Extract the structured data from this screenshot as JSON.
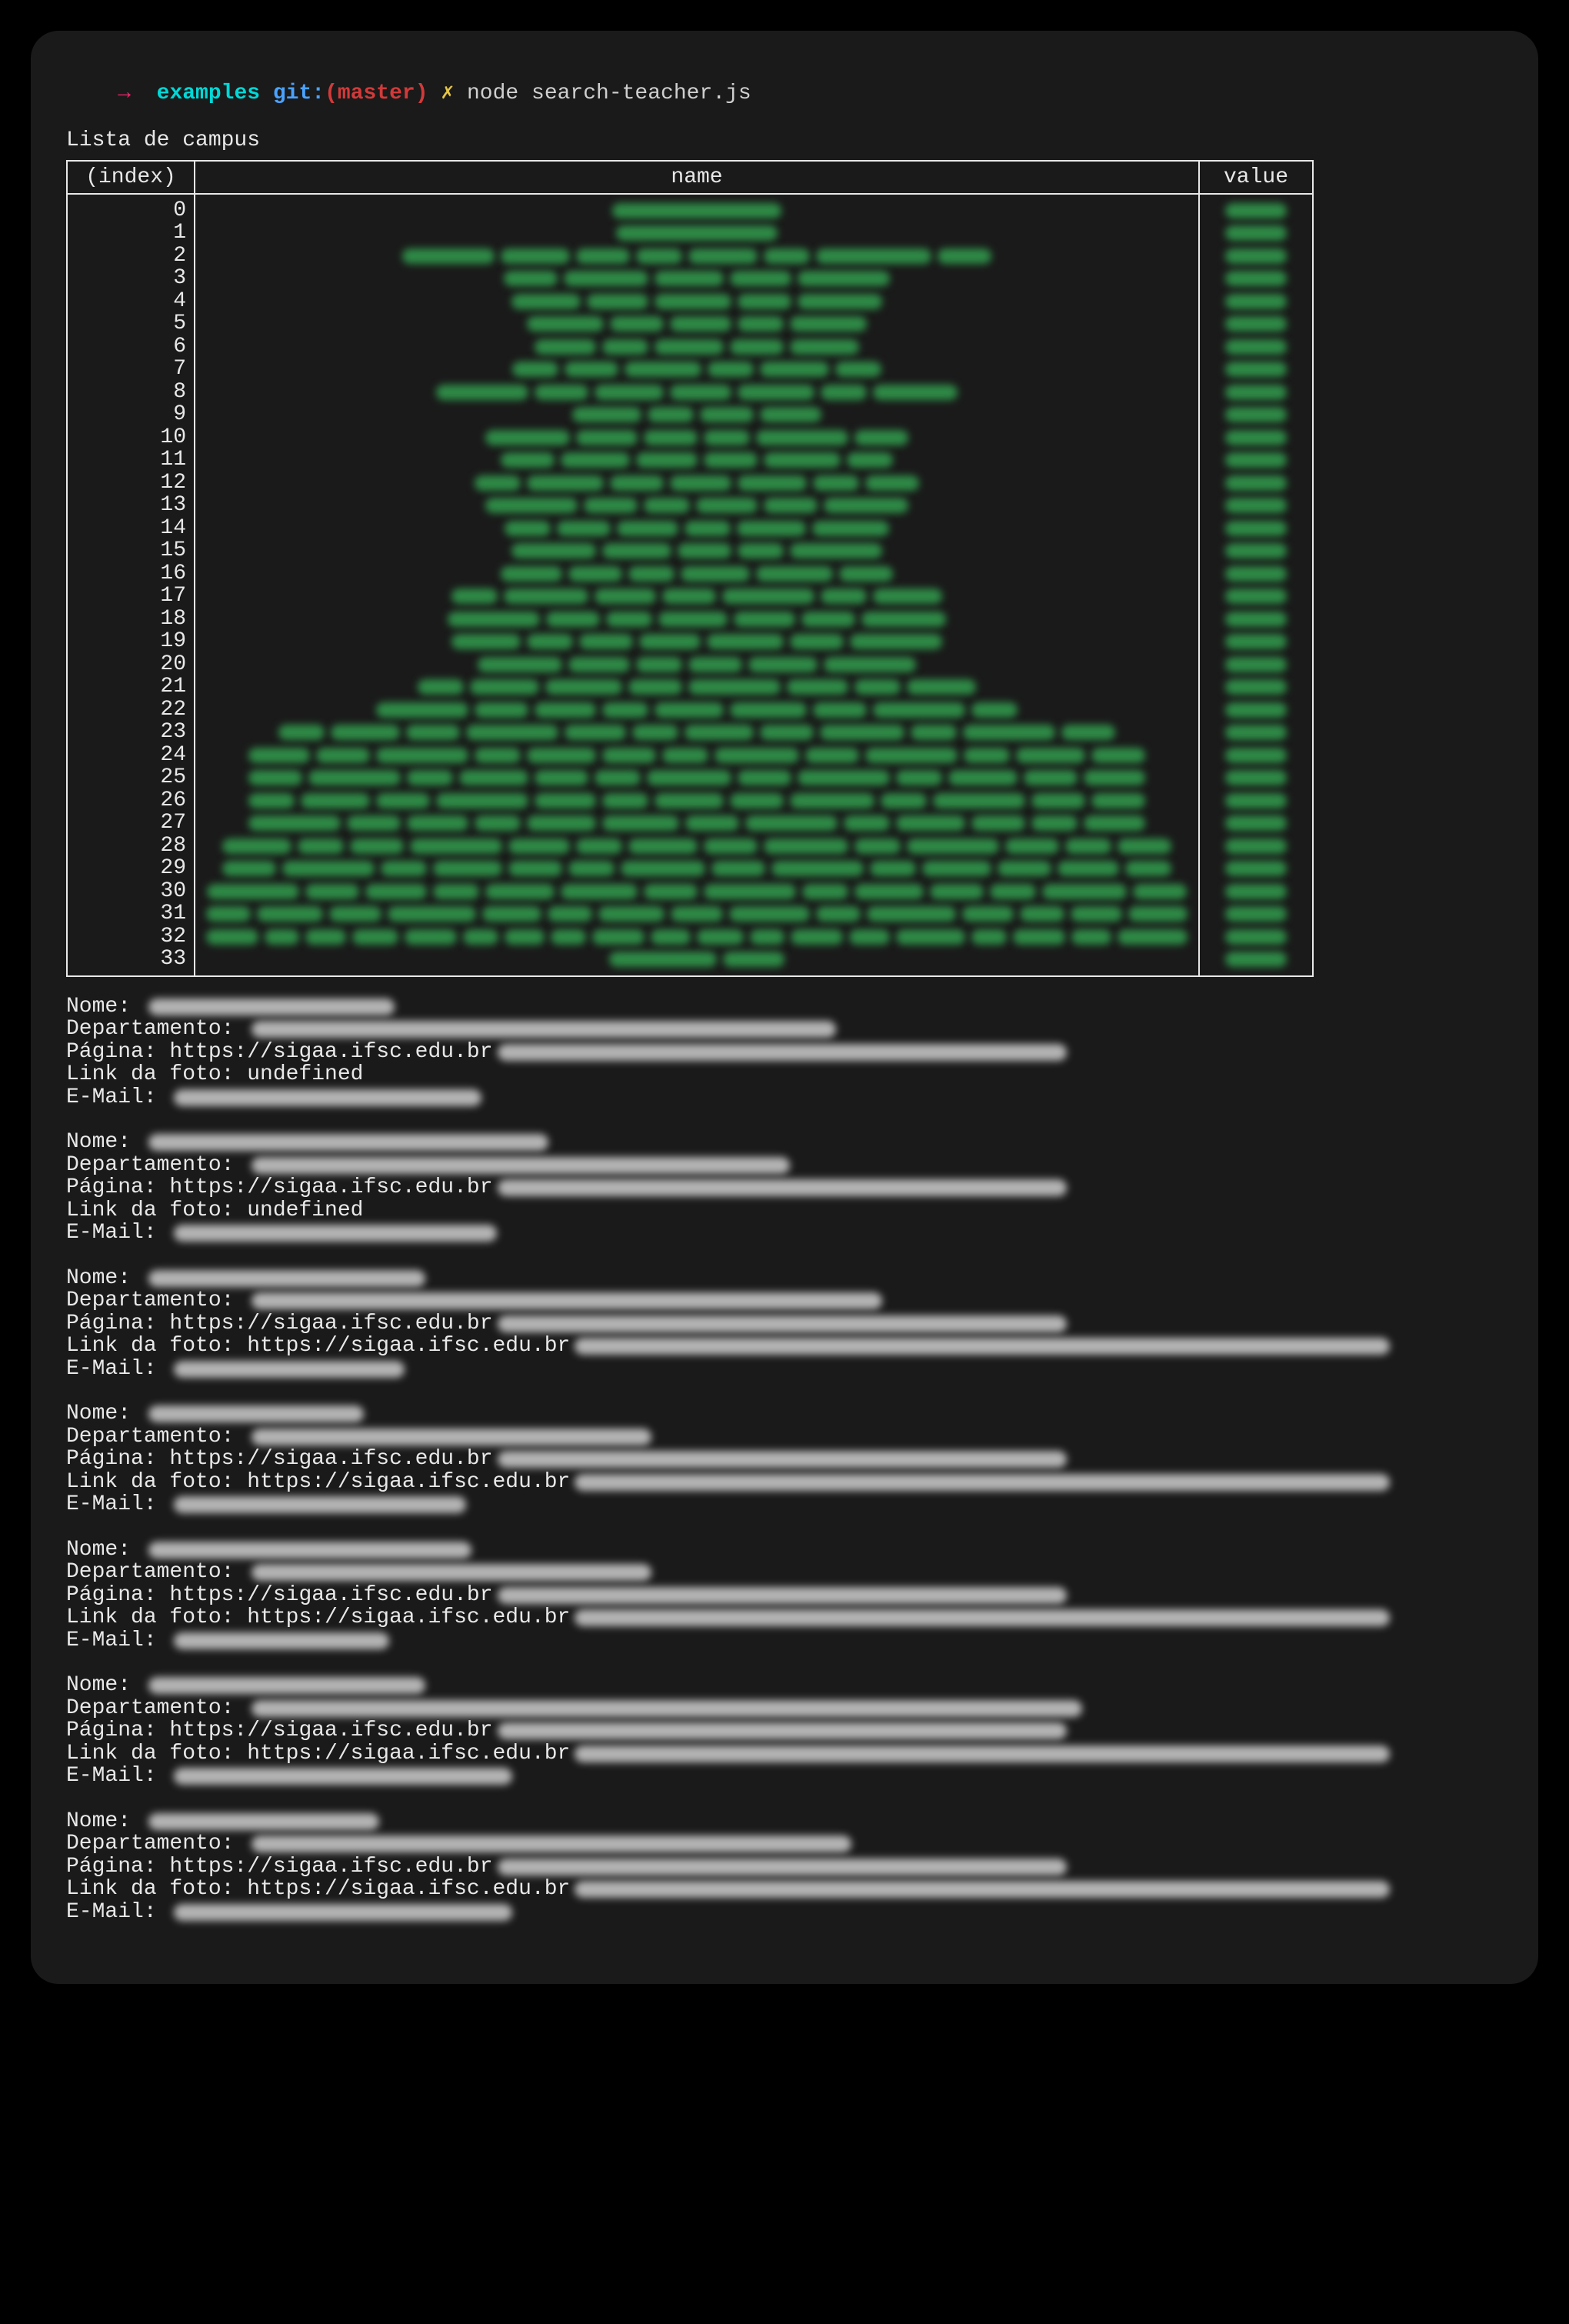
{
  "prompt": {
    "arrow": "→",
    "cwd": "examples",
    "git_label": "git:",
    "branch": "(master)",
    "dirty_mark": "✗",
    "command": "node search-teacher.js"
  },
  "subtitle": "Lista de campus",
  "table": {
    "headers": {
      "index": "(index)",
      "name": "name",
      "value": "value"
    },
    "row_count": 34,
    "name_blur_widths": [
      [
        220
      ],
      [
        210
      ],
      [
        120,
        90,
        70,
        60,
        90,
        60,
        150,
        70
      ],
      [
        70,
        110,
        90,
        80,
        120
      ],
      [
        90,
        80,
        100,
        70,
        110
      ],
      [
        100,
        70,
        80,
        60,
        100
      ],
      [
        80,
        60,
        90,
        70,
        90
      ],
      [
        60,
        70,
        100,
        60,
        90,
        60
      ],
      [
        120,
        70,
        90,
        80,
        100,
        60,
        110
      ],
      [
        90,
        60,
        70,
        80
      ],
      [
        110,
        80,
        70,
        60,
        120,
        70
      ],
      [
        70,
        90,
        80,
        70,
        100,
        60
      ],
      [
        60,
        100,
        70,
        80,
        90,
        60,
        70
      ],
      [
        120,
        70,
        60,
        80,
        70,
        110
      ],
      [
        60,
        70,
        80,
        60,
        90,
        100
      ],
      [
        110,
        90,
        70,
        60,
        120
      ],
      [
        80,
        70,
        60,
        90,
        100,
        70
      ],
      [
        60,
        110,
        80,
        70,
        120,
        60,
        90
      ],
      [
        120,
        70,
        60,
        90,
        80,
        70,
        110
      ],
      [
        90,
        60,
        70,
        80,
        100,
        70,
        120
      ],
      [
        110,
        80,
        60,
        70,
        90,
        120
      ],
      [
        60,
        90,
        100,
        70,
        120,
        80,
        60,
        90
      ],
      [
        120,
        70,
        80,
        60,
        90,
        100,
        70,
        120,
        60
      ],
      [
        60,
        90,
        70,
        120,
        80,
        60,
        90,
        70,
        110,
        60,
        120,
        70
      ],
      [
        80,
        70,
        120,
        60,
        90,
        70,
        60,
        110,
        70,
        120,
        60,
        90,
        70
      ],
      [
        70,
        120,
        60,
        90,
        70,
        60,
        110,
        70,
        120,
        60,
        90,
        70,
        80
      ],
      [
        60,
        90,
        70,
        120,
        80,
        60,
        90,
        70,
        110,
        60,
        120,
        70,
        70
      ],
      [
        120,
        70,
        80,
        60,
        90,
        100,
        70,
        120,
        60,
        90,
        70,
        60,
        80
      ],
      [
        90,
        60,
        70,
        120,
        80,
        60,
        90,
        70,
        110,
        60,
        120,
        70,
        60,
        70
      ],
      [
        70,
        120,
        60,
        90,
        70,
        60,
        110,
        70,
        120,
        60,
        90,
        70,
        80,
        60
      ],
      [
        120,
        70,
        80,
        60,
        90,
        100,
        70,
        120,
        60,
        90,
        70,
        60,
        110,
        70
      ],
      [
        60,
        90,
        70,
        120,
        80,
        60,
        90,
        70,
        110,
        60,
        120,
        70,
        60,
        70,
        80
      ],
      [
        90,
        60,
        70,
        80,
        90,
        60,
        70,
        60,
        90,
        70,
        80,
        60,
        90,
        70,
        120,
        60,
        90,
        70,
        120
      ],
      [
        140,
        80
      ]
    ]
  },
  "records": [
    {
      "nome_blur": 320,
      "dept_blur": 760,
      "pagina_prefix": "https://sigaa.ifsc.edu.br",
      "pagina_blur": 740,
      "foto_is_url": false,
      "foto_text": "undefined",
      "foto_blur": 0,
      "email_blur": 400
    },
    {
      "nome_blur": 520,
      "dept_blur": 700,
      "pagina_prefix": "https://sigaa.ifsc.edu.br",
      "pagina_blur": 740,
      "foto_is_url": false,
      "foto_text": "undefined",
      "foto_blur": 0,
      "email_blur": 420
    },
    {
      "nome_blur": 360,
      "dept_blur": 820,
      "pagina_prefix": "https://sigaa.ifsc.edu.br",
      "pagina_blur": 740,
      "foto_is_url": true,
      "foto_text": "https://sigaa.ifsc.edu.br",
      "foto_blur": 1060,
      "email_blur": 300
    },
    {
      "nome_blur": 280,
      "dept_blur": 520,
      "pagina_prefix": "https://sigaa.ifsc.edu.br",
      "pagina_blur": 740,
      "foto_is_url": true,
      "foto_text": "https://sigaa.ifsc.edu.br",
      "foto_blur": 1060,
      "email_blur": 380
    },
    {
      "nome_blur": 420,
      "dept_blur": 520,
      "pagina_prefix": "https://sigaa.ifsc.edu.br",
      "pagina_blur": 740,
      "foto_is_url": true,
      "foto_text": "https://sigaa.ifsc.edu.br",
      "foto_blur": 1060,
      "email_blur": 280
    },
    {
      "nome_blur": 360,
      "dept_blur": 1080,
      "pagina_prefix": "https://sigaa.ifsc.edu.br",
      "pagina_blur": 740,
      "foto_is_url": true,
      "foto_text": "https://sigaa.ifsc.edu.br",
      "foto_blur": 1060,
      "email_blur": 440
    },
    {
      "nome_blur": 300,
      "dept_blur": 780,
      "pagina_prefix": "https://sigaa.ifsc.edu.br",
      "pagina_blur": 740,
      "foto_is_url": true,
      "foto_text": "https://sigaa.ifsc.edu.br",
      "foto_blur": 1060,
      "email_blur": 440
    }
  ],
  "labels": {
    "nome": "Nome:",
    "departamento": "Departamento:",
    "pagina": "Página:",
    "link_foto": "Link da foto:",
    "email": "E-Mail:"
  },
  "colors": {
    "bg_outer": "#000000",
    "bg_frame": "#1a1a1a",
    "text": "#e8e8e8",
    "table_border": "#e8e8e8",
    "green_blur": "#2e8a46",
    "grey_blur": "#cfcfcf",
    "arrow": "#f92672",
    "cwd": "#00d8d8",
    "git": "#4aa3ff",
    "branch": "#d23a3a",
    "dirty": "#e5c547"
  }
}
